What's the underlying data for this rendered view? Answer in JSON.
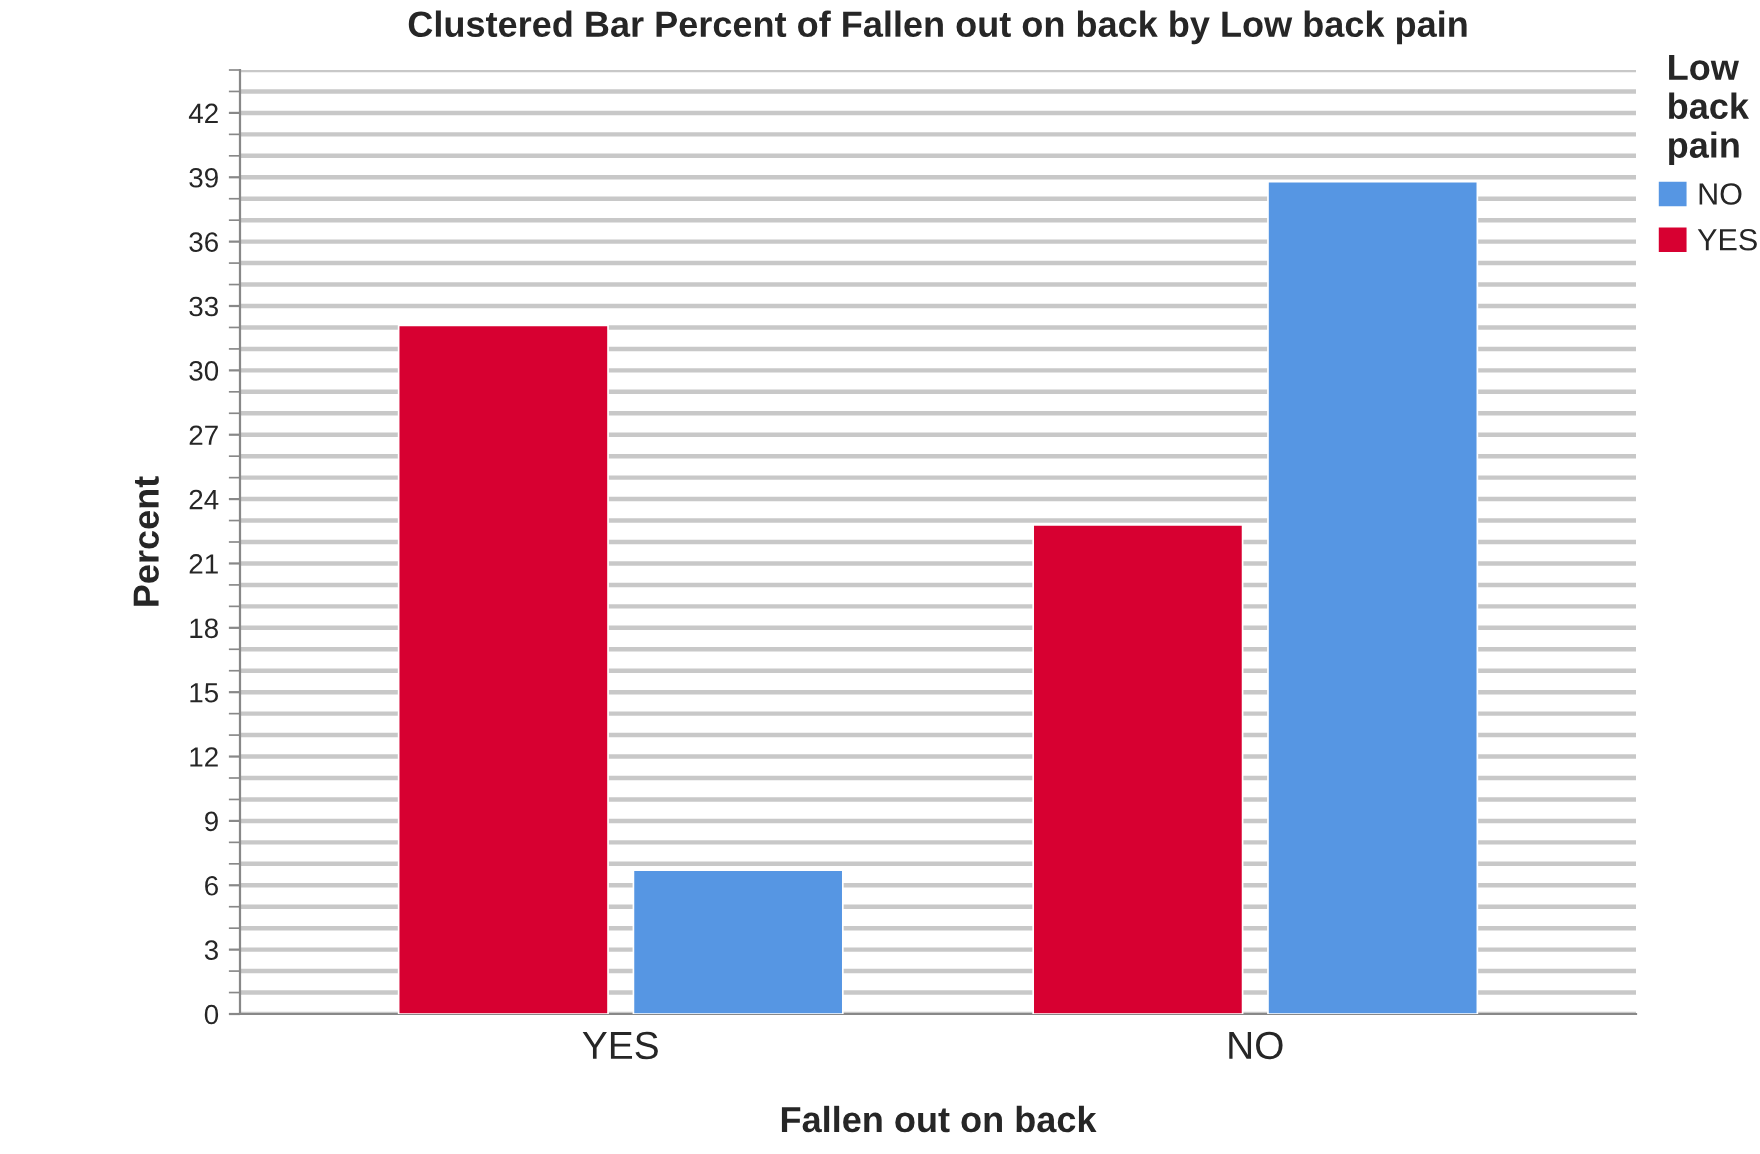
{
  "chart_data": {
    "type": "bar",
    "title": "Clustered Bar Percent of Fallen out on back by Low back pain",
    "xlabel": "Fallen out on back",
    "ylabel": "Percent",
    "legend_title": "Low back pain",
    "categories": [
      "YES",
      "NO"
    ],
    "series": [
      {
        "name": "YES",
        "color": "#d70031",
        "values": [
          32.1,
          22.8
        ]
      },
      {
        "name": "NO",
        "color": "#5696e3",
        "values": [
          6.7,
          38.8
        ]
      }
    ],
    "ylim": [
      0,
      44
    ],
    "yticks": [
      0,
      3,
      6,
      9,
      12,
      15,
      18,
      21,
      24,
      27,
      30,
      33,
      36,
      39,
      42
    ],
    "grid": "y",
    "legend": "top right"
  }
}
